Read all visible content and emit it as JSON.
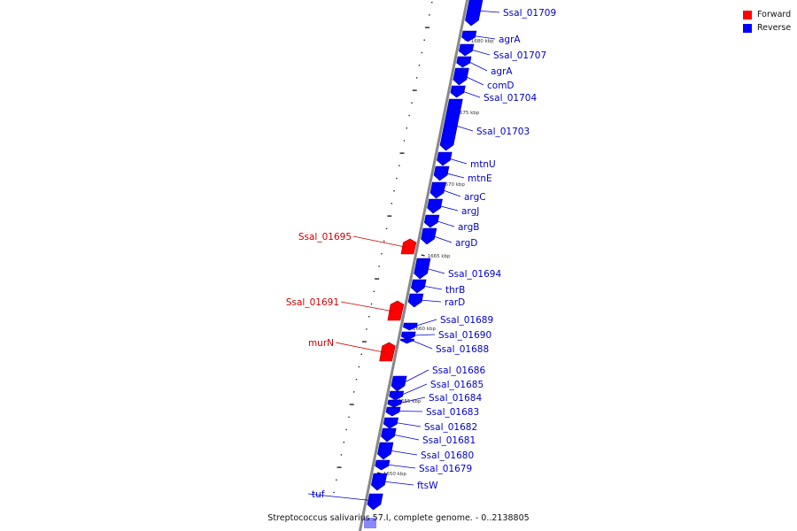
{
  "caption": "Streptococcus salivarius 57.I, complete genome. - 0..2138805",
  "legend": [
    {
      "label": "Forward",
      "color": "#ff0000"
    },
    {
      "label": "Reverse",
      "color": "#0000ff"
    }
  ],
  "colors": {
    "forward": "#ff0000",
    "reverse": "#0000ff",
    "forward_label": "#cc0000",
    "reverse_label": "#0000cc",
    "backbone": "#888888"
  },
  "ticks": [
    "1680 kbp",
    "1675 kbp",
    "1670 kbp",
    "1665 kbp",
    "1660 kbp",
    "1655 kbp",
    "1650 kbp"
  ],
  "genes": [
    {
      "name": "Ssal_01709",
      "strand": "reverse"
    },
    {
      "name": "agrA",
      "strand": "reverse"
    },
    {
      "name": "Ssal_01707",
      "strand": "reverse"
    },
    {
      "name": "agrA",
      "strand": "reverse"
    },
    {
      "name": "comD",
      "strand": "reverse"
    },
    {
      "name": "Ssal_01704",
      "strand": "reverse"
    },
    {
      "name": "Ssal_01703",
      "strand": "reverse"
    },
    {
      "name": "mtnU",
      "strand": "reverse"
    },
    {
      "name": "mtnE",
      "strand": "reverse"
    },
    {
      "name": "argC",
      "strand": "reverse"
    },
    {
      "name": "argJ",
      "strand": "reverse"
    },
    {
      "name": "argB",
      "strand": "reverse"
    },
    {
      "name": "argD",
      "strand": "reverse"
    },
    {
      "name": "Ssal_01695",
      "strand": "forward"
    },
    {
      "name": "Ssal_01694",
      "strand": "reverse"
    },
    {
      "name": "thrB",
      "strand": "reverse"
    },
    {
      "name": "rarD",
      "strand": "reverse"
    },
    {
      "name": "Ssal_01691",
      "strand": "forward"
    },
    {
      "name": "Ssal_01689",
      "strand": "reverse"
    },
    {
      "name": "Ssal_01690",
      "strand": "reverse"
    },
    {
      "name": "murN",
      "strand": "forward"
    },
    {
      "name": "Ssal_01688",
      "strand": "reverse"
    },
    {
      "name": "Ssal_01686",
      "strand": "reverse"
    },
    {
      "name": "Ssal_01685",
      "strand": "reverse"
    },
    {
      "name": "Ssal_01684",
      "strand": "reverse"
    },
    {
      "name": "Ssal_01683",
      "strand": "reverse"
    },
    {
      "name": "Ssal_01682",
      "strand": "reverse"
    },
    {
      "name": "Ssal_01681",
      "strand": "reverse"
    },
    {
      "name": "Ssal_01680",
      "strand": "reverse"
    },
    {
      "name": "Ssal_01679",
      "strand": "reverse"
    },
    {
      "name": "ftsW",
      "strand": "reverse"
    },
    {
      "name": "tuf",
      "strand": "reverse"
    }
  ]
}
